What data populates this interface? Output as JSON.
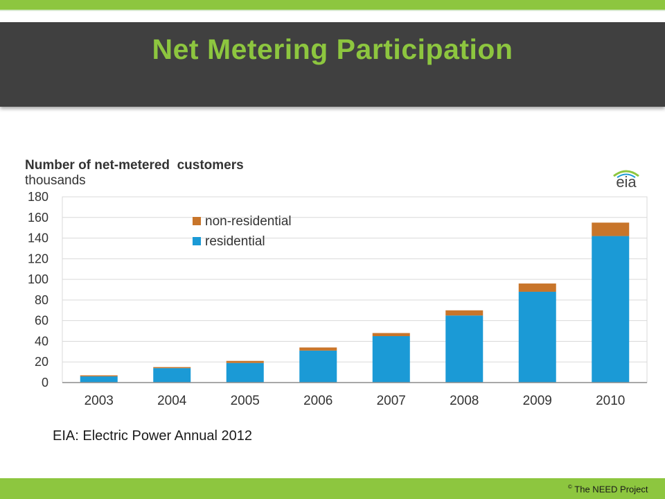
{
  "slide": {
    "title": "Net Metering Participation",
    "source": "EIA: Electric Power Annual 2012",
    "copyright_symbol": "©",
    "copyright_text": "The NEED Project"
  },
  "colors": {
    "accent_green": "#8dc63f",
    "title_band": "#404040",
    "residential": "#1b9ad6",
    "non_residential": "#c8752a"
  },
  "chart_data": {
    "type": "bar",
    "stacked": true,
    "title": "Number of net-metered  customers",
    "subtitle": "thousands",
    "logo_text": "eia",
    "categories": [
      "2003",
      "2004",
      "2005",
      "2006",
      "2007",
      "2008",
      "2009",
      "2010"
    ],
    "series": [
      {
        "name": "residential",
        "color": "#1b9ad6",
        "values": [
          6,
          14,
          19,
          31,
          45,
          65,
          88,
          142
        ]
      },
      {
        "name": "non-residential",
        "color": "#c8752a",
        "values": [
          1,
          1,
          2,
          3,
          3,
          5,
          8,
          13
        ]
      }
    ],
    "legend_order": [
      "non-residential",
      "residential"
    ],
    "legend_position": "top-left",
    "yticks": [
      "0",
      "20",
      "40",
      "60",
      "80",
      "100",
      "120",
      "140",
      "160",
      "180"
    ],
    "ylim": [
      0,
      180
    ],
    "grid": true
  }
}
